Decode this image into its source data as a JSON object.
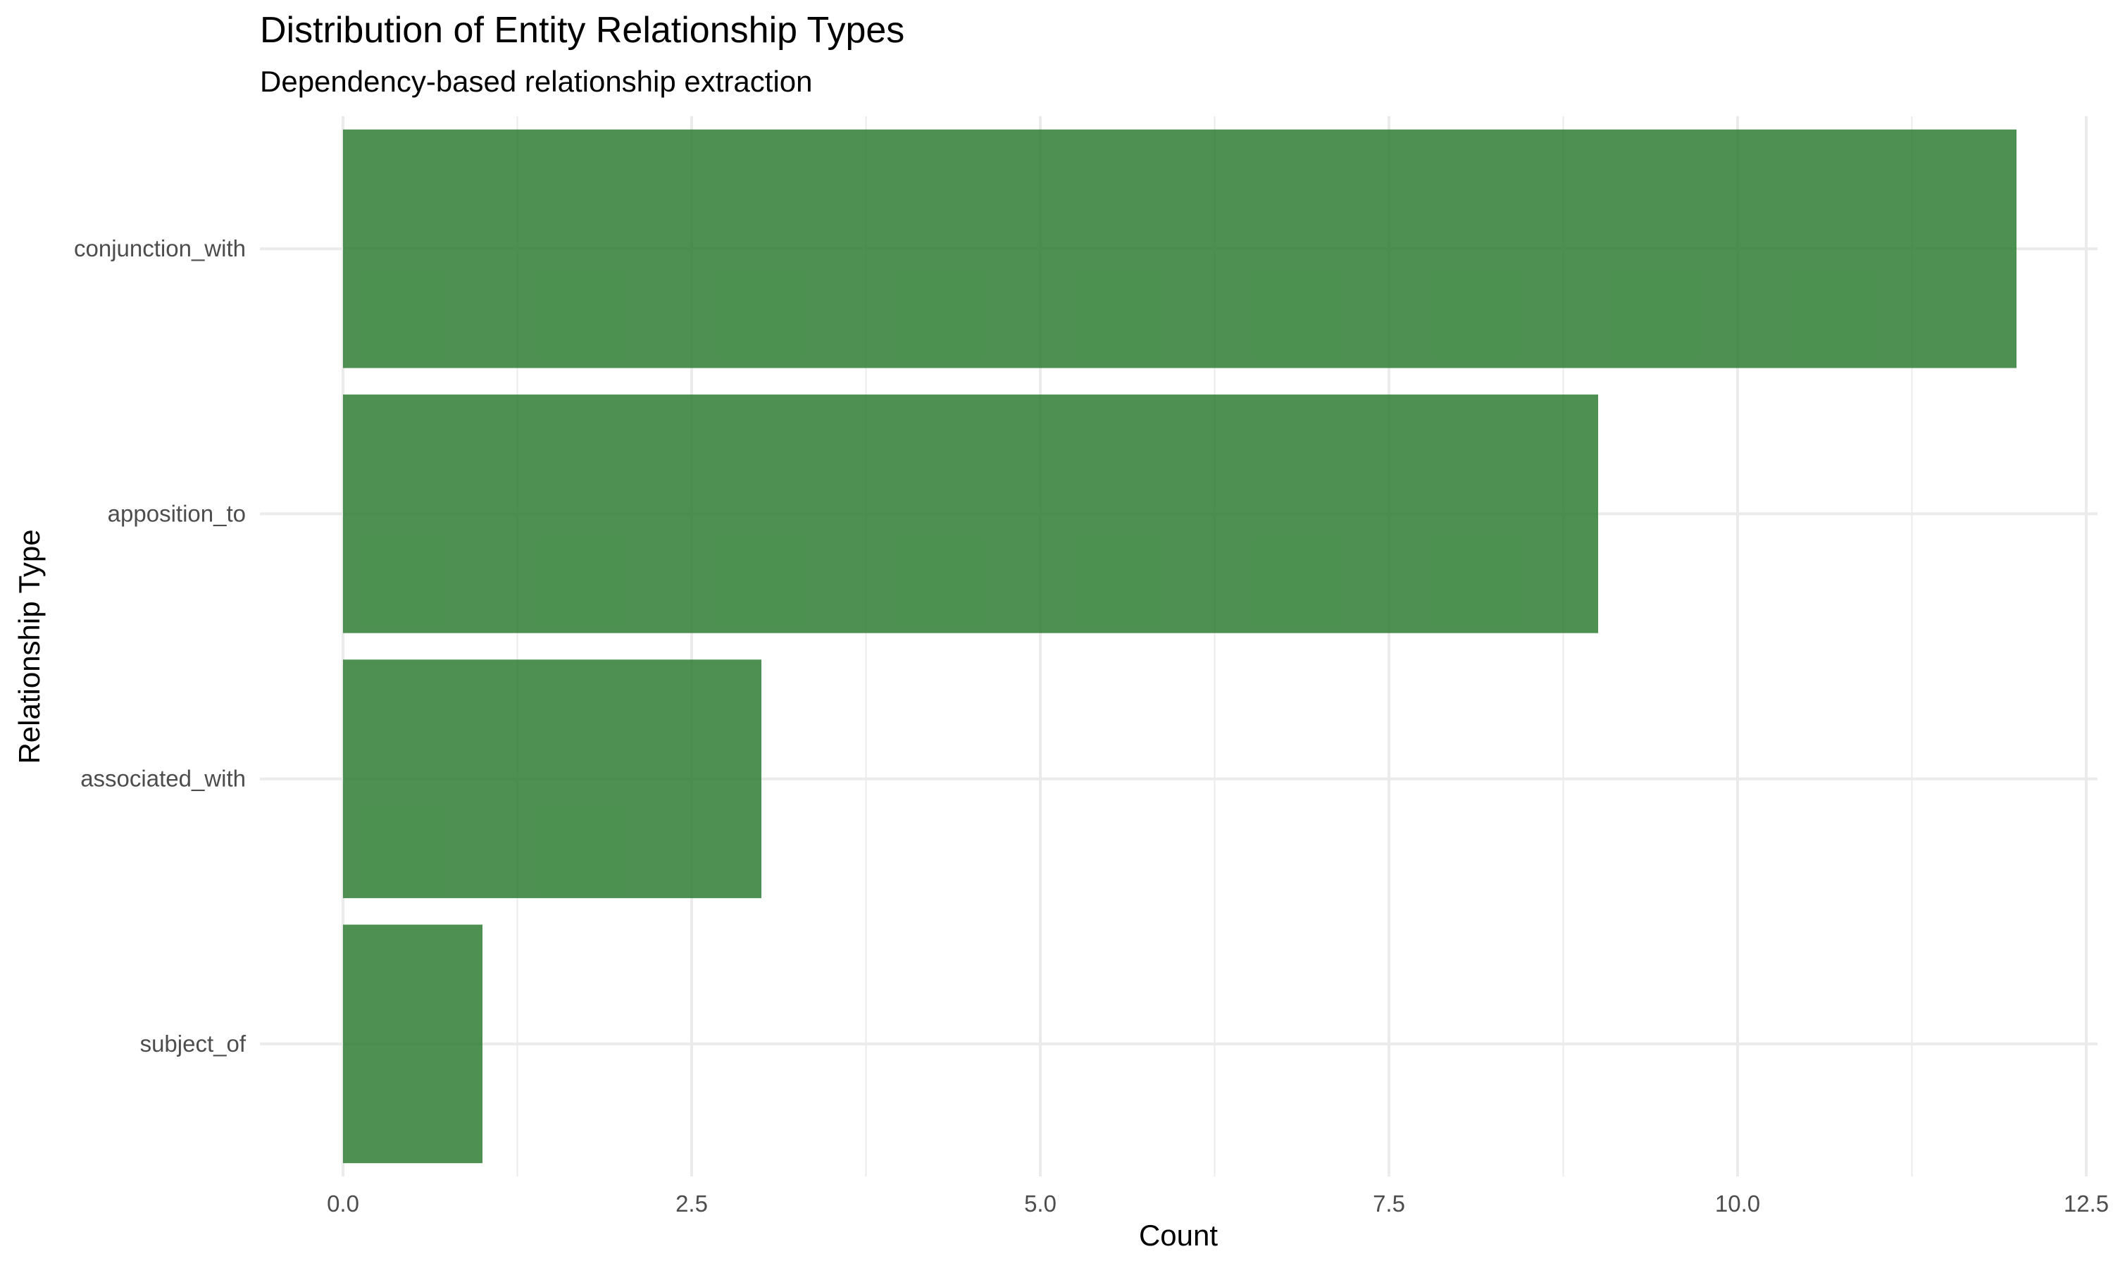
{
  "chart_data": {
    "type": "bar",
    "orientation": "horizontal",
    "title": "Distribution of Entity Relationship Types",
    "subtitle": "Dependency-based relationship extraction",
    "xlabel": "Count",
    "ylabel": "Relationship Type",
    "categories": [
      "conjunction_with",
      "apposition_to",
      "associated_with",
      "subject_of"
    ],
    "values": [
      12,
      9,
      3,
      1
    ],
    "xlim": [
      0,
      12.6
    ],
    "x_ticks": [
      0,
      2.5,
      5,
      7.5,
      10,
      12.5
    ],
    "x_tick_labels": [
      "0.0",
      "2.5",
      "5.0",
      "7.5",
      "10.0",
      "12.5"
    ],
    "bar_color": "#2e7d32",
    "bar_opacity": 0.85,
    "grid": true,
    "legend": "none"
  }
}
